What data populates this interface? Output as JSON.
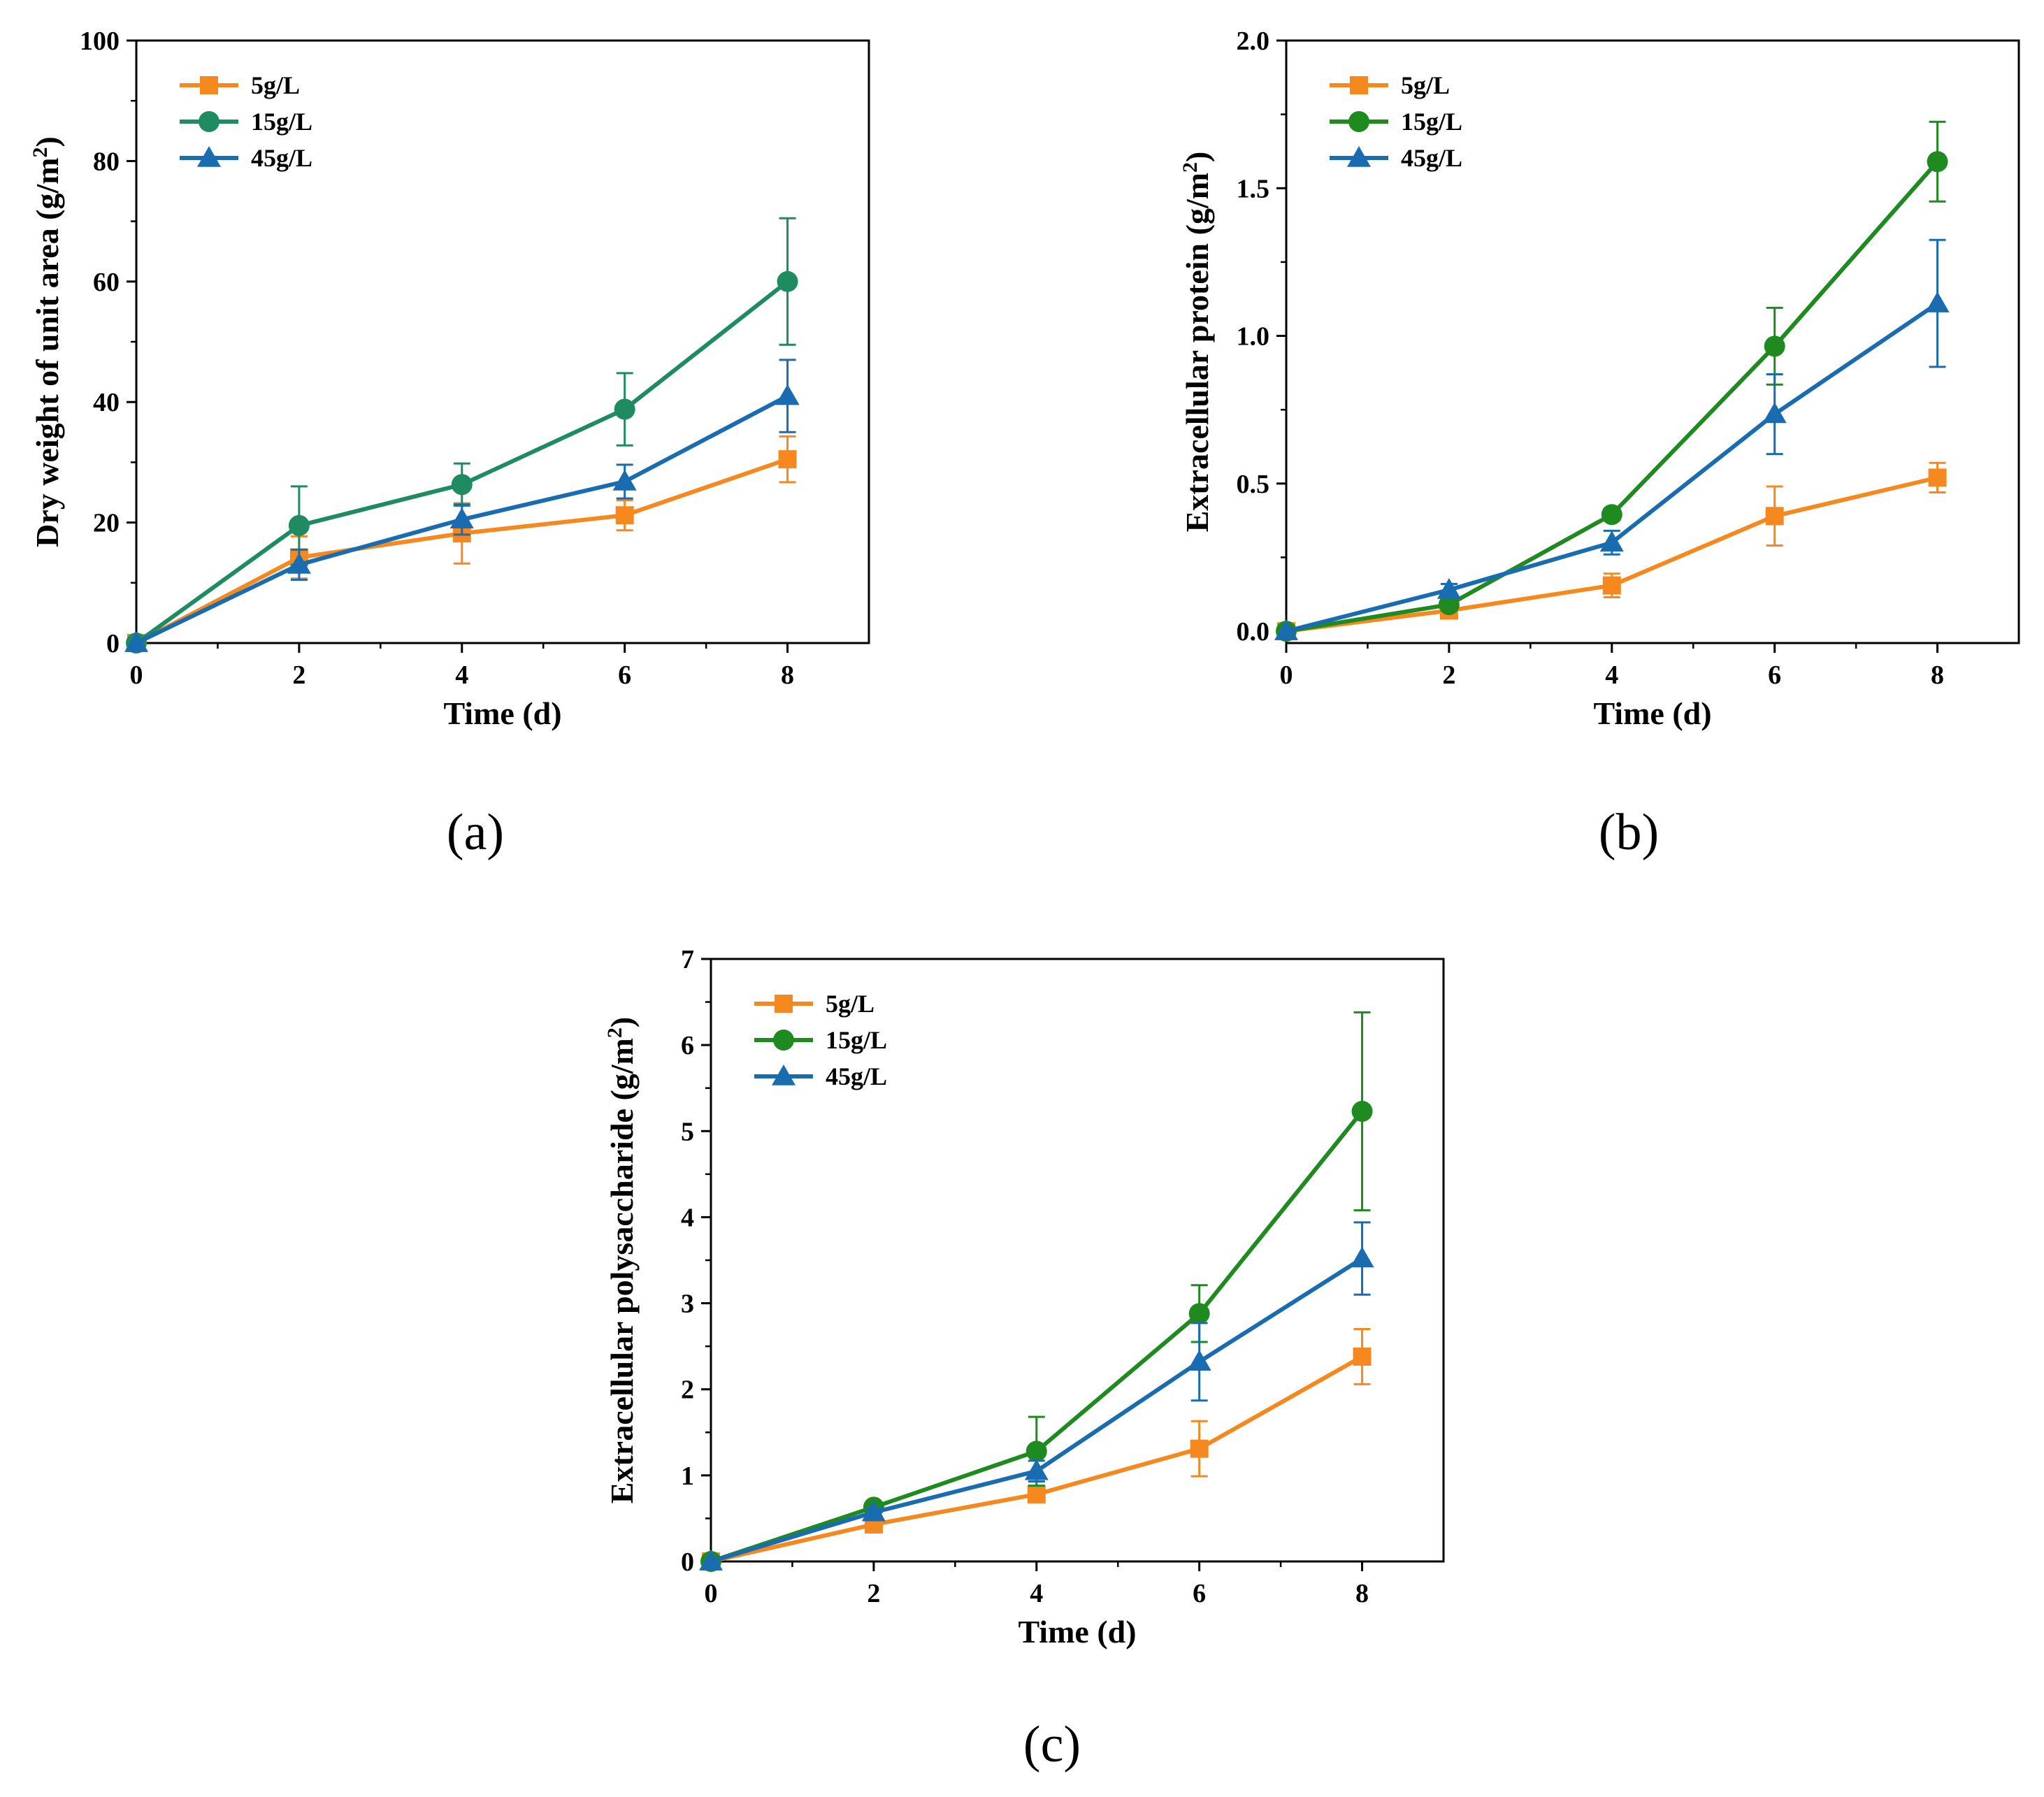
{
  "chart_data": [
    {
      "id": "a",
      "type": "line",
      "caption": "(a)",
      "xlabel": "Time (d)",
      "ylabel": "Dry weight of unit area (g/m",
      "ylabel_sup": "2",
      "ylabel_end": ")",
      "xlim": [
        0,
        9
      ],
      "ylim": [
        0,
        100
      ],
      "xticks": [
        0,
        2,
        4,
        6,
        8
      ],
      "xtick_labels": [
        "0",
        "2",
        "4",
        "6",
        "8"
      ],
      "yticks": [
        0,
        20,
        40,
        60,
        80,
        100
      ],
      "ytick_labels": [
        "0",
        "20",
        "40",
        "60",
        "80",
        "100"
      ],
      "legend_position": "top-left",
      "series": [
        {
          "name": "5g/L",
          "color": "#f5891f",
          "marker": "square",
          "x": [
            0,
            2,
            4,
            6,
            8
          ],
          "y": [
            0,
            14.2,
            18.2,
            21.2,
            30.5
          ],
          "err": [
            0,
            3.5,
            5,
            2.5,
            3.8
          ]
        },
        {
          "name": "15g/L",
          "color": "#1e8c60",
          "marker": "circle",
          "x": [
            0,
            2,
            4,
            6,
            8
          ],
          "y": [
            0,
            19.5,
            26.3,
            38.8,
            60
          ],
          "err": [
            0,
            6.5,
            3.5,
            6,
            10.5
          ]
        },
        {
          "name": "45g/L",
          "color": "#1a6cb0",
          "marker": "triangle",
          "x": [
            0,
            2,
            4,
            6,
            8
          ],
          "y": [
            0,
            13,
            20.5,
            26.8,
            41
          ],
          "err": [
            0,
            2.5,
            2.5,
            2.8,
            6
          ]
        }
      ]
    },
    {
      "id": "b",
      "type": "line",
      "caption": "(b)",
      "xlabel": "Time (d)",
      "ylabel": "Extracellular protein (g/m",
      "ylabel_sup": "2",
      "ylabel_end": ")",
      "xlim": [
        0,
        9
      ],
      "ylim": [
        -0.04,
        2.0
      ],
      "xticks": [
        0,
        2,
        4,
        6,
        8
      ],
      "xtick_labels": [
        "0",
        "2",
        "4",
        "6",
        "8"
      ],
      "yticks": [
        0,
        0.5,
        1.0,
        1.5,
        2.0
      ],
      "ytick_labels": [
        "0.0",
        "0.5",
        "1.0",
        "1.5",
        "2.0"
      ],
      "legend_position": "top-left",
      "series": [
        {
          "name": "5g/L",
          "color": "#f5891f",
          "marker": "square",
          "x": [
            0,
            2,
            4,
            6,
            8
          ],
          "y": [
            0,
            0.07,
            0.155,
            0.39,
            0.52
          ],
          "err": [
            0,
            0.02,
            0.04,
            0.1,
            0.05
          ]
        },
        {
          "name": "15g/L",
          "color": "#1f8a1f",
          "marker": "circle",
          "x": [
            0,
            2,
            4,
            6,
            8
          ],
          "y": [
            0,
            0.09,
            0.395,
            0.965,
            1.59
          ],
          "err": [
            0,
            0.02,
            0.02,
            0.13,
            0.135
          ]
        },
        {
          "name": "45g/L",
          "color": "#1a6cb0",
          "marker": "triangle",
          "x": [
            0,
            2,
            4,
            6,
            8
          ],
          "y": [
            0,
            0.14,
            0.3,
            0.735,
            1.11
          ],
          "err": [
            0,
            0.02,
            0.04,
            0.135,
            0.215
          ]
        }
      ]
    },
    {
      "id": "c",
      "type": "line",
      "caption": "(c)",
      "xlabel": "Time (d)",
      "ylabel": "Extracellular polysaccharide (g/m",
      "ylabel_sup": "2",
      "ylabel_end": ")",
      "xlim": [
        0,
        9
      ],
      "ylim": [
        0,
        7
      ],
      "xticks": [
        0,
        2,
        4,
        6,
        8
      ],
      "xtick_labels": [
        "0",
        "2",
        "4",
        "6",
        "8"
      ],
      "yticks": [
        0,
        1,
        2,
        3,
        4,
        5,
        6,
        7
      ],
      "ytick_labels": [
        "0",
        "1",
        "2",
        "3",
        "4",
        "5",
        "6",
        "7"
      ],
      "legend_position": "top-left",
      "series": [
        {
          "name": "5g/L",
          "color": "#f5891f",
          "marker": "square",
          "x": [
            0,
            2,
            4,
            6,
            8
          ],
          "y": [
            0,
            0.43,
            0.78,
            1.31,
            2.38
          ],
          "err": [
            0,
            0.05,
            0.05,
            0.32,
            0.32
          ]
        },
        {
          "name": "15g/L",
          "color": "#1f8a1f",
          "marker": "circle",
          "x": [
            0,
            2,
            4,
            6,
            8
          ],
          "y": [
            0,
            0.63,
            1.28,
            2.88,
            5.23
          ],
          "err": [
            0,
            0.05,
            0.4,
            0.33,
            1.15
          ]
        },
        {
          "name": "45g/L",
          "color": "#1a6cb0",
          "marker": "triangle",
          "x": [
            0,
            2,
            4,
            6,
            8
          ],
          "y": [
            0,
            0.57,
            1.05,
            2.32,
            3.52
          ],
          "err": [
            0,
            0.05,
            0.12,
            0.45,
            0.42
          ]
        }
      ]
    }
  ]
}
